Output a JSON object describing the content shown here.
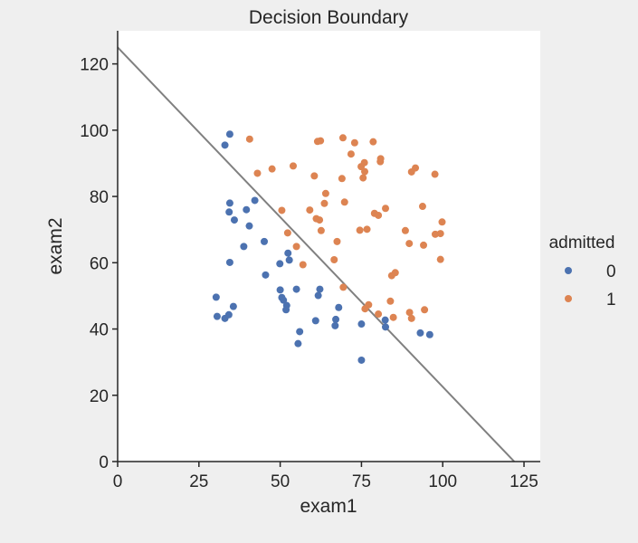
{
  "chart_data": {
    "type": "scatter",
    "title": "Decision Boundary",
    "xlabel": "exam1",
    "ylabel": "exam2",
    "xlim": [
      0,
      130
    ],
    "ylim": [
      0,
      130
    ],
    "xticks": [
      0,
      25,
      50,
      75,
      100,
      125
    ],
    "yticks": [
      0,
      20,
      40,
      60,
      80,
      100,
      120
    ],
    "grid": false,
    "legend": {
      "title": "admitted",
      "placement": "right",
      "entries": [
        "0",
        "1"
      ]
    },
    "series": [
      {
        "name": "0",
        "color": "#4c72b0",
        "points": [
          [
            34.5,
            98.8
          ],
          [
            33.0,
            95.5
          ],
          [
            34.5,
            78.0
          ],
          [
            34.3,
            75.3
          ],
          [
            35.9,
            72.9
          ],
          [
            39.6,
            76.0
          ],
          [
            42.2,
            78.8
          ],
          [
            40.5,
            71.1
          ],
          [
            38.8,
            64.9
          ],
          [
            45.1,
            66.4
          ],
          [
            34.5,
            60.1
          ],
          [
            45.5,
            56.3
          ],
          [
            49.9,
            59.7
          ],
          [
            52.4,
            62.9
          ],
          [
            52.8,
            60.8
          ],
          [
            55.0,
            52.0
          ],
          [
            50.0,
            51.8
          ],
          [
            50.5,
            49.5
          ],
          [
            51.0,
            48.7
          ],
          [
            52.0,
            47.1
          ],
          [
            51.8,
            45.8
          ],
          [
            30.3,
            49.6
          ],
          [
            35.6,
            46.8
          ],
          [
            30.6,
            43.8
          ],
          [
            33.0,
            43.2
          ],
          [
            34.2,
            44.3
          ],
          [
            56.0,
            39.2
          ],
          [
            55.5,
            35.6
          ],
          [
            60.9,
            42.5
          ],
          [
            62.2,
            52.0
          ],
          [
            61.7,
            50.1
          ],
          [
            67.1,
            42.9
          ],
          [
            66.9,
            41.0
          ],
          [
            68.0,
            46.5
          ],
          [
            75.0,
            41.5
          ],
          [
            75.0,
            30.6
          ],
          [
            82.3,
            42.7
          ],
          [
            82.4,
            40.6
          ],
          [
            93.1,
            38.8
          ],
          [
            96.0,
            38.3
          ]
        ]
      },
      {
        "name": "1",
        "color": "#dd8452",
        "points": [
          [
            40.6,
            97.3
          ],
          [
            43.0,
            87.0
          ],
          [
            47.5,
            88.3
          ],
          [
            54.0,
            89.2
          ],
          [
            57.0,
            59.4
          ],
          [
            60.5,
            86.2
          ],
          [
            61.5,
            96.6
          ],
          [
            62.4,
            96.8
          ],
          [
            69.3,
            97.7
          ],
          [
            71.8,
            92.8
          ],
          [
            72.9,
            96.2
          ],
          [
            74.9,
            89.0
          ],
          [
            75.9,
            90.2
          ],
          [
            75.5,
            85.6
          ],
          [
            76.0,
            87.5
          ],
          [
            78.6,
            96.5
          ],
          [
            80.9,
            91.4
          ],
          [
            80.8,
            90.5
          ],
          [
            69.0,
            85.4
          ],
          [
            64.0,
            80.9
          ],
          [
            63.6,
            77.9
          ],
          [
            59.1,
            75.9
          ],
          [
            61.1,
            73.3
          ],
          [
            62.1,
            72.9
          ],
          [
            62.6,
            69.7
          ],
          [
            55.0,
            64.9
          ],
          [
            52.3,
            69.0
          ],
          [
            50.5,
            75.8
          ],
          [
            69.8,
            78.3
          ],
          [
            74.5,
            69.8
          ],
          [
            76.7,
            70.1
          ],
          [
            79.0,
            74.9
          ],
          [
            80.2,
            74.3
          ],
          [
            82.4,
            76.4
          ],
          [
            67.5,
            66.4
          ],
          [
            66.6,
            60.9
          ],
          [
            69.4,
            52.6
          ],
          [
            77.2,
            47.3
          ],
          [
            76.1,
            46.1
          ],
          [
            80.2,
            44.5
          ],
          [
            83.9,
            48.4
          ],
          [
            84.8,
            43.5
          ],
          [
            84.3,
            56.1
          ],
          [
            85.4,
            57.0
          ],
          [
            89.7,
            65.8
          ],
          [
            88.5,
            69.7
          ],
          [
            90.4,
            87.4
          ],
          [
            91.6,
            88.6
          ],
          [
            93.8,
            77.0
          ],
          [
            94.1,
            65.3
          ],
          [
            97.6,
            86.7
          ],
          [
            97.7,
            68.6
          ],
          [
            99.3,
            68.8
          ],
          [
            99.8,
            72.3
          ],
          [
            99.3,
            61.0
          ],
          [
            94.4,
            45.8
          ],
          [
            90.4,
            43.2
          ],
          [
            89.8,
            45.0
          ]
        ]
      }
    ],
    "boundary_line": {
      "color": "#808080",
      "points": [
        [
          0,
          125
        ],
        [
          122,
          0
        ]
      ]
    }
  }
}
